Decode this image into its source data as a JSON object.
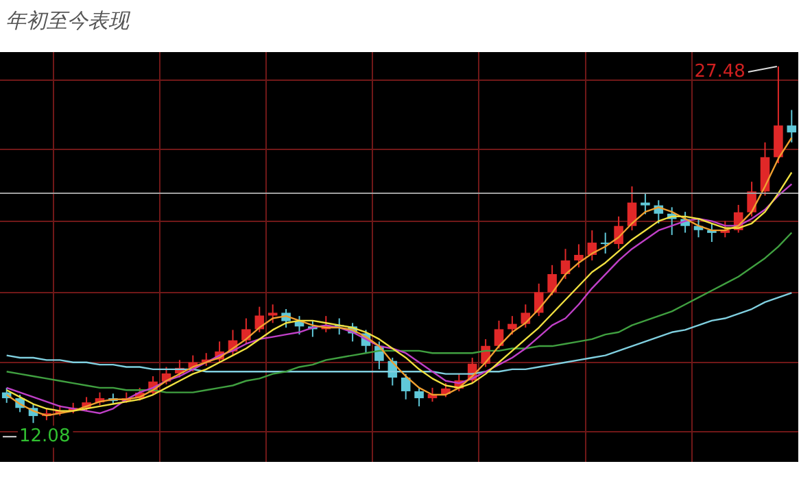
{
  "chart_data": {
    "type": "candlestick",
    "title": "年初至今表现",
    "categories": [
      null,
      null,
      null,
      null,
      null,
      null,
      null,
      null,
      null,
      null,
      null,
      null,
      null,
      null,
      null,
      null,
      null,
      null,
      null,
      null,
      null,
      null,
      null,
      null,
      null,
      null,
      null,
      null,
      null,
      null,
      null,
      null,
      null,
      null,
      null,
      null,
      null,
      null,
      null,
      null,
      null,
      null,
      null,
      null,
      null,
      null,
      null,
      null,
      null,
      null,
      null,
      null,
      null,
      null,
      null,
      null,
      null,
      null,
      null,
      null
    ],
    "ohlc": [
      [
        13.4,
        13.6,
        12.95,
        13.15
      ],
      [
        13.15,
        13.3,
        12.55,
        12.73
      ],
      [
        12.73,
        12.9,
        12.08,
        12.38
      ],
      [
        12.38,
        12.7,
        12.2,
        12.5
      ],
      [
        12.5,
        12.85,
        12.4,
        12.62
      ],
      [
        12.62,
        12.95,
        12.5,
        12.73
      ],
      [
        12.73,
        13.2,
        12.6,
        12.97
      ],
      [
        12.97,
        13.4,
        12.85,
        13.15
      ],
      [
        13.15,
        13.35,
        12.9,
        13.03
      ],
      [
        13.03,
        13.4,
        12.95,
        13.15
      ],
      [
        13.15,
        13.6,
        13.05,
        13.39
      ],
      [
        13.39,
        14.1,
        13.3,
        13.87
      ],
      [
        13.87,
        14.5,
        13.75,
        14.22
      ],
      [
        14.22,
        14.8,
        14.05,
        14.46
      ],
      [
        14.46,
        15.0,
        14.3,
        14.7
      ],
      [
        14.7,
        15.1,
        14.55,
        14.82
      ],
      [
        14.82,
        15.6,
        14.7,
        15.17
      ],
      [
        15.17,
        16.1,
        15.0,
        15.65
      ],
      [
        15.65,
        16.6,
        15.5,
        16.13
      ],
      [
        16.13,
        17.1,
        16.0,
        16.72
      ],
      [
        16.72,
        17.2,
        16.4,
        16.84
      ],
      [
        16.84,
        17.0,
        16.2,
        16.48
      ],
      [
        16.48,
        16.7,
        15.9,
        16.25
      ],
      [
        16.25,
        16.5,
        15.8,
        16.13
      ],
      [
        16.13,
        16.7,
        16.0,
        16.3
      ],
      [
        16.3,
        16.6,
        15.9,
        16.25
      ],
      [
        16.25,
        16.4,
        15.6,
        15.95
      ],
      [
        15.95,
        16.1,
        15.1,
        15.41
      ],
      [
        15.41,
        15.6,
        14.4,
        14.76
      ],
      [
        14.76,
        14.9,
        13.7,
        14.04
      ],
      [
        14.04,
        14.2,
        13.1,
        13.45
      ],
      [
        13.45,
        13.6,
        12.8,
        13.15
      ],
      [
        13.15,
        13.6,
        13.0,
        13.33
      ],
      [
        13.33,
        13.8,
        13.2,
        13.57
      ],
      [
        13.57,
        14.2,
        13.45,
        13.92
      ],
      [
        13.92,
        14.9,
        13.8,
        14.64
      ],
      [
        14.64,
        15.7,
        14.5,
        15.41
      ],
      [
        15.41,
        16.5,
        15.3,
        16.13
      ],
      [
        16.13,
        16.7,
        15.9,
        16.36
      ],
      [
        16.36,
        17.2,
        16.2,
        16.84
      ],
      [
        16.84,
        18.1,
        16.7,
        17.73
      ],
      [
        17.73,
        18.9,
        17.6,
        18.51
      ],
      [
        18.51,
        19.6,
        18.3,
        19.1
      ],
      [
        19.1,
        19.8,
        18.8,
        19.34
      ],
      [
        19.34,
        20.4,
        19.1,
        19.87
      ],
      [
        19.87,
        20.3,
        19.4,
        19.81
      ],
      [
        19.81,
        21.0,
        19.6,
        20.59
      ],
      [
        20.59,
        22.3,
        20.4,
        21.6
      ],
      [
        21.6,
        22.0,
        21.1,
        21.48
      ],
      [
        21.48,
        21.7,
        20.7,
        21.12
      ],
      [
        21.12,
        21.4,
        20.2,
        20.89
      ],
      [
        20.89,
        21.2,
        20.3,
        20.59
      ],
      [
        20.59,
        20.9,
        20.1,
        20.41
      ],
      [
        20.41,
        20.7,
        19.9,
        20.29
      ],
      [
        20.29,
        20.8,
        20.1,
        20.41
      ],
      [
        20.41,
        21.5,
        20.3,
        21.18
      ],
      [
        21.18,
        22.5,
        21.0,
        22.08
      ],
      [
        22.08,
        24.2,
        21.9,
        23.56
      ],
      [
        23.56,
        27.48,
        23.3,
        24.93
      ],
      [
        24.93,
        25.6,
        24.2,
        24.63
      ]
    ],
    "colors": [
      "#60c8d8",
      "#60c8d8",
      "#60c8d8",
      "#e02828",
      "#e02828",
      "#e02828",
      "#e02828",
      "#e02828",
      "#60c8d8",
      "#e02828",
      "#e02828",
      "#e02828",
      "#e02828",
      "#e02828",
      "#e02828",
      "#e02828",
      "#e02828",
      "#e02828",
      "#e02828",
      "#e02828",
      "#e02828",
      "#60c8d8",
      "#60c8d8",
      "#60c8d8",
      "#e02828",
      "#60c8d8",
      "#60c8d8",
      "#60c8d8",
      "#60c8d8",
      "#60c8d8",
      "#60c8d8",
      "#60c8d8",
      "#e02828",
      "#e02828",
      "#e02828",
      "#e02828",
      "#e02828",
      "#e02828",
      "#e02828",
      "#e02828",
      "#e02828",
      "#e02828",
      "#e02828",
      "#e02828",
      "#e02828",
      "#60c8d8",
      "#e02828",
      "#e02828",
      "#60c8d8",
      "#60c8d8",
      "#60c8d8",
      "#60c8d8",
      "#60c8d8",
      "#60c8d8",
      "#e02828",
      "#e02828",
      "#e02828",
      "#e02828",
      "#e02828",
      "#60c8d8"
    ],
    "series": [
      {
        "type": "line",
        "color": "#f0e040",
        "values": [
          13.5,
          13.2,
          12.9,
          12.7,
          12.6,
          12.6,
          12.7,
          12.8,
          12.9,
          13.0,
          13.1,
          13.3,
          13.6,
          13.9,
          14.2,
          14.4,
          14.7,
          15.0,
          15.3,
          15.7,
          16.1,
          16.4,
          16.5,
          16.5,
          16.4,
          16.3,
          16.2,
          16.0,
          15.7,
          15.3,
          14.9,
          14.4,
          14.0,
          13.7,
          13.6,
          13.8,
          14.2,
          14.7,
          15.2,
          15.7,
          16.2,
          16.8,
          17.4,
          18.0,
          18.6,
          19.0,
          19.5,
          20.0,
          20.4,
          20.8,
          21.0,
          21.0,
          20.9,
          20.7,
          20.5,
          20.5,
          20.7,
          21.2,
          22.0,
          22.9
        ]
      },
      {
        "type": "line",
        "color": "#f0a030",
        "values": [
          13.3,
          12.9,
          12.6,
          12.4,
          12.5,
          12.6,
          12.8,
          13.0,
          13.1,
          13.1,
          13.2,
          13.5,
          13.9,
          14.2,
          14.5,
          14.7,
          14.9,
          15.3,
          15.7,
          16.2,
          16.6,
          16.7,
          16.5,
          16.3,
          16.2,
          16.2,
          16.1,
          15.8,
          15.4,
          14.7,
          14.1,
          13.6,
          13.3,
          13.3,
          13.6,
          14.1,
          14.7,
          15.4,
          16.0,
          16.4,
          17.0,
          17.7,
          18.5,
          19.0,
          19.4,
          19.7,
          20.1,
          20.7,
          21.2,
          21.4,
          21.2,
          20.9,
          20.6,
          20.4,
          20.4,
          20.6,
          21.2,
          22.3,
          23.5,
          24.4
        ]
      },
      {
        "type": "line",
        "color": "#c040c8",
        "values": [
          13.6,
          13.4,
          13.2,
          13.0,
          12.8,
          12.7,
          12.6,
          12.5,
          12.7,
          13.1,
          13.4,
          13.6,
          13.9,
          14.1,
          14.4,
          14.7,
          15.0,
          15.2,
          15.5,
          15.7,
          15.8,
          15.9,
          16.0,
          16.2,
          16.3,
          16.2,
          16.0,
          15.7,
          15.4,
          15.3,
          15.1,
          14.7,
          14.3,
          13.9,
          13.8,
          14.0,
          14.3,
          14.6,
          14.9,
          15.3,
          15.8,
          16.3,
          16.6,
          17.2,
          17.9,
          18.5,
          19.1,
          19.6,
          20.0,
          20.4,
          20.6,
          20.8,
          20.9,
          20.8,
          20.6,
          20.6,
          20.9,
          21.3,
          21.9,
          22.4
        ]
      },
      {
        "type": "line",
        "color": "#40a040",
        "values": [
          14.3,
          14.2,
          14.1,
          14.0,
          13.9,
          13.8,
          13.7,
          13.6,
          13.6,
          13.5,
          13.5,
          13.5,
          13.4,
          13.4,
          13.4,
          13.5,
          13.6,
          13.7,
          13.9,
          14.0,
          14.2,
          14.3,
          14.5,
          14.6,
          14.8,
          14.9,
          15.0,
          15.1,
          15.2,
          15.2,
          15.2,
          15.2,
          15.1,
          15.1,
          15.1,
          15.1,
          15.2,
          15.2,
          15.3,
          15.3,
          15.4,
          15.4,
          15.5,
          15.6,
          15.7,
          15.9,
          16.0,
          16.3,
          16.5,
          16.7,
          16.9,
          17.2,
          17.5,
          17.8,
          18.1,
          18.4,
          18.8,
          19.2,
          19.7,
          20.3
        ]
      },
      {
        "type": "line",
        "color": "#80d0e0",
        "values": [
          15.0,
          14.9,
          14.9,
          14.8,
          14.8,
          14.7,
          14.7,
          14.6,
          14.6,
          14.5,
          14.5,
          14.4,
          14.4,
          14.4,
          14.4,
          14.3,
          14.3,
          14.3,
          14.3,
          14.3,
          14.3,
          14.3,
          14.3,
          14.3,
          14.3,
          14.3,
          14.3,
          14.3,
          14.3,
          14.3,
          14.3,
          14.3,
          14.3,
          14.2,
          14.2,
          14.2,
          14.3,
          14.3,
          14.4,
          14.4,
          14.5,
          14.6,
          14.7,
          14.8,
          14.9,
          15.0,
          15.2,
          15.4,
          15.6,
          15.8,
          16.0,
          16.1,
          16.3,
          16.5,
          16.6,
          16.8,
          17.0,
          17.3,
          17.5,
          17.7
        ]
      }
    ],
    "ylim": [
      10.4,
      28.1
    ],
    "yticks": [
      {
        "value": 11.7,
        "label": null
      },
      {
        "value": 14.7,
        "label": null
      },
      {
        "value": 17.7,
        "label": null
      },
      {
        "value": 20.8,
        "label": null
      },
      {
        "value": 23.9,
        "label": null
      },
      {
        "value": 26.9,
        "label": null
      }
    ],
    "grid": true,
    "tick_labels": false,
    "ref_lines": [
      {
        "axis": "y",
        "value": 22.0,
        "color": "#a0a0a0"
      }
    ],
    "annotations": [
      "27.48",
      "12.08"
    ]
  }
}
